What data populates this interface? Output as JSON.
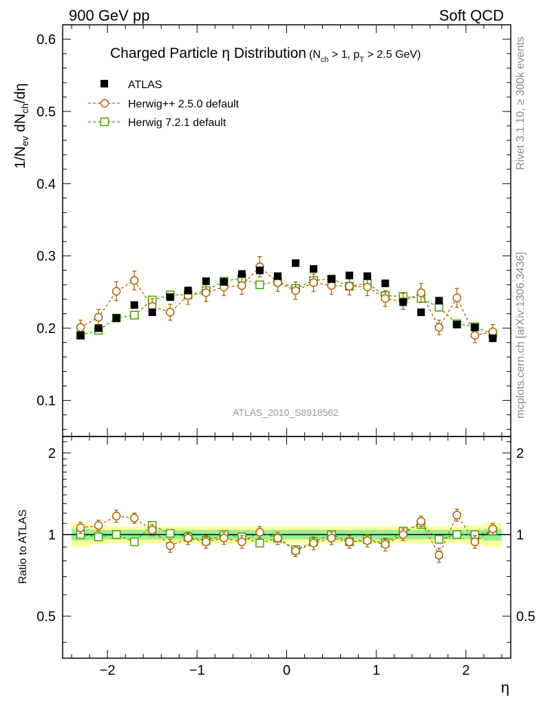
{
  "header": {
    "left": "900 GeV pp",
    "right": "Soft QCD"
  },
  "side": {
    "rivet": "Rivet 3.1.10, ≥ 300k events",
    "mcplots": "mcplots.cern.ch [arXiv:1306.3436]"
  },
  "chart_data": {
    "type": "scatter",
    "title_main": "Charged Particle",
    "title_eta": "η Distribution",
    "title_sub": "(N",
    "title_sub_ch": "ch",
    "title_sub_mid": " > 1, p",
    "title_sub_T": "T",
    "title_sub_end": " > 2.5 GeV)",
    "ylabel": "1/N_ev dN_ch/dη",
    "ylabel_parts": {
      "a": "1/N",
      "b": "ev",
      "c": " dN",
      "d": "ch",
      "e": "/dη"
    },
    "ratio_ylabel": "Ratio to ATLAS",
    "xlabel": "η",
    "watermark": "ATLAS_2010_S8918562",
    "xlim": [
      -2.5,
      2.5
    ],
    "ylim": [
      0.05,
      0.62
    ],
    "ratio_ylim": [
      0.35,
      2.3
    ],
    "x_ticks": [
      "−2",
      "−1",
      "0",
      "1",
      "2"
    ],
    "x_tick_values": [
      -2,
      -1,
      0,
      1,
      2
    ],
    "y_ticks": [
      "0.1",
      "0.2",
      "0.3",
      "0.4",
      "0.5",
      "0.6"
    ],
    "y_tick_values": [
      0.1,
      0.2,
      0.3,
      0.4,
      0.5,
      0.6
    ],
    "ratio_ticks": [
      "0.5",
      "1",
      "2"
    ],
    "ratio_tick_values": [
      0.5,
      1,
      2
    ],
    "x": [
      -2.3,
      -2.1,
      -1.9,
      -1.7,
      -1.5,
      -1.3,
      -1.1,
      -0.9,
      -0.7,
      -0.5,
      -0.3,
      -0.1,
      0.1,
      0.3,
      0.5,
      0.7,
      0.9,
      1.1,
      1.3,
      1.5,
      1.7,
      1.9,
      2.1,
      2.3
    ],
    "series": [
      {
        "name": "ATLAS",
        "marker": "filled-square",
        "color": "#000000",
        "values": [
          0.19,
          0.2,
          0.214,
          0.232,
          0.222,
          0.243,
          0.252,
          0.265,
          0.264,
          0.275,
          0.28,
          0.272,
          0.29,
          0.282,
          0.268,
          0.273,
          0.272,
          0.262,
          0.236,
          0.222,
          0.238,
          0.205,
          0.201,
          0.186
        ],
        "errors": [
          0.004,
          0.004,
          0.004,
          0.004,
          0.004,
          0.004,
          0.004,
          0.004,
          0.004,
          0.004,
          0.004,
          0.004,
          0.004,
          0.004,
          0.004,
          0.004,
          0.004,
          0.004,
          0.004,
          0.004,
          0.004,
          0.004,
          0.004,
          0.004
        ],
        "ratio_band_inner": [
          0.05,
          0.04,
          0.04,
          0.04,
          0.04,
          0.04,
          0.04,
          0.04,
          0.04,
          0.04,
          0.04,
          0.04,
          0.04,
          0.04,
          0.04,
          0.04,
          0.04,
          0.04,
          0.04,
          0.04,
          0.04,
          0.04,
          0.04,
          0.05
        ],
        "ratio_band_outer": [
          0.1,
          0.08,
          0.07,
          0.07,
          0.07,
          0.07,
          0.07,
          0.07,
          0.07,
          0.07,
          0.07,
          0.07,
          0.07,
          0.07,
          0.07,
          0.07,
          0.07,
          0.07,
          0.07,
          0.07,
          0.07,
          0.07,
          0.08,
          0.1
        ]
      },
      {
        "name": "Herwig++ 2.5.0 default",
        "marker": "open-circle",
        "color": "#b35f00",
        "values": [
          0.201,
          0.215,
          0.251,
          0.266,
          0.23,
          0.222,
          0.245,
          0.249,
          0.257,
          0.259,
          0.285,
          0.263,
          0.252,
          0.263,
          0.259,
          0.258,
          0.257,
          0.241,
          0.237,
          0.249,
          0.201,
          0.242,
          0.19,
          0.195
        ],
        "errors": [
          0.01,
          0.011,
          0.013,
          0.013,
          0.011,
          0.011,
          0.012,
          0.012,
          0.012,
          0.012,
          0.014,
          0.012,
          0.012,
          0.012,
          0.012,
          0.012,
          0.012,
          0.011,
          0.011,
          0.013,
          0.01,
          0.013,
          0.01,
          0.01
        ],
        "ratios": [
          1.06,
          1.08,
          1.17,
          1.15,
          1.04,
          0.91,
          0.97,
          0.94,
          0.97,
          0.94,
          1.02,
          0.97,
          0.87,
          0.93,
          0.97,
          0.94,
          0.95,
          0.92,
          1.0,
          1.12,
          0.84,
          1.18,
          0.94,
          1.05
        ],
        "ratio_errors": [
          0.05,
          0.05,
          0.06,
          0.05,
          0.05,
          0.05,
          0.05,
          0.05,
          0.05,
          0.05,
          0.05,
          0.05,
          0.04,
          0.05,
          0.05,
          0.05,
          0.05,
          0.05,
          0.05,
          0.05,
          0.05,
          0.06,
          0.05,
          0.05
        ]
      },
      {
        "name": "Herwig 7.2.1 default",
        "marker": "open-square",
        "color": "#3fa000",
        "values": [
          0.19,
          0.197,
          0.214,
          0.218,
          0.239,
          0.246,
          0.246,
          0.252,
          0.265,
          0.269,
          0.26,
          0.265,
          0.255,
          0.266,
          0.268,
          0.258,
          0.262,
          0.245,
          0.244,
          0.241,
          0.229,
          0.206,
          0.202,
          0.192
        ],
        "errors": [
          0.003,
          0.003,
          0.003,
          0.003,
          0.003,
          0.003,
          0.003,
          0.003,
          0.003,
          0.003,
          0.003,
          0.003,
          0.003,
          0.003,
          0.003,
          0.003,
          0.003,
          0.003,
          0.003,
          0.003,
          0.003,
          0.003,
          0.003,
          0.003
        ],
        "ratios": [
          1.0,
          0.98,
          1.0,
          0.94,
          1.08,
          1.01,
          0.98,
          0.95,
          1.0,
          0.98,
          0.93,
          0.97,
          0.88,
          0.94,
          1.0,
          0.94,
          0.96,
          0.93,
          1.03,
          1.09,
          0.96,
          1.0,
          1.0,
          1.03
        ],
        "ratio_errors": [
          0.02,
          0.02,
          0.02,
          0.02,
          0.02,
          0.02,
          0.02,
          0.02,
          0.02,
          0.02,
          0.02,
          0.02,
          0.02,
          0.02,
          0.02,
          0.02,
          0.02,
          0.02,
          0.02,
          0.02,
          0.02,
          0.02,
          0.02,
          0.02
        ]
      }
    ]
  }
}
